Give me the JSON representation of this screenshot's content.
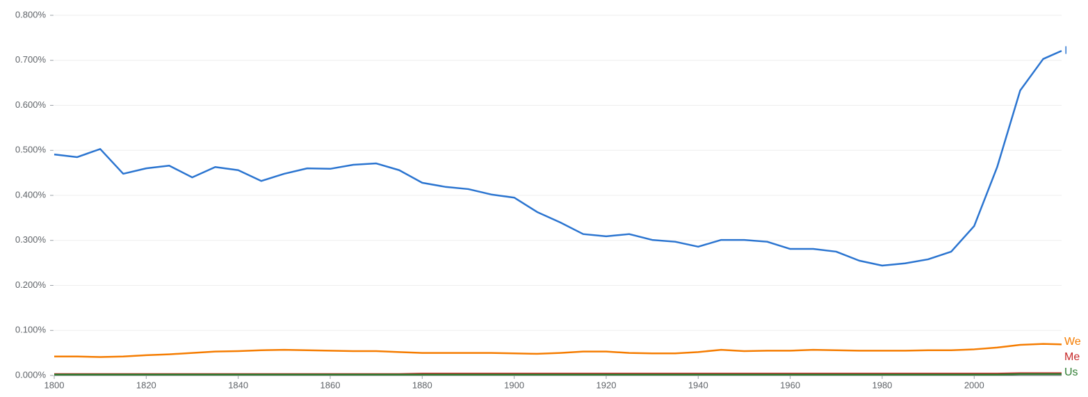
{
  "chart_data": {
    "type": "line",
    "x": [
      1800,
      1805,
      1810,
      1815,
      1820,
      1825,
      1830,
      1835,
      1840,
      1845,
      1850,
      1855,
      1860,
      1865,
      1870,
      1875,
      1880,
      1885,
      1890,
      1895,
      1900,
      1905,
      1910,
      1915,
      1920,
      1925,
      1930,
      1935,
      1940,
      1945,
      1950,
      1955,
      1960,
      1965,
      1970,
      1975,
      1980,
      1985,
      1990,
      1995,
      2000,
      2005,
      2010,
      2015,
      2019
    ],
    "series": [
      {
        "name": "I",
        "color": "#2a74d0",
        "values": [
          0.491,
          0.485,
          0.503,
          0.448,
          0.46,
          0.466,
          0.44,
          0.463,
          0.456,
          0.432,
          0.448,
          0.46,
          0.459,
          0.468,
          0.471,
          0.456,
          0.428,
          0.419,
          0.414,
          0.402,
          0.395,
          0.363,
          0.34,
          0.314,
          0.309,
          0.314,
          0.301,
          0.297,
          0.286,
          0.301,
          0.301,
          0.297,
          0.281,
          0.281,
          0.275,
          0.255,
          0.244,
          0.249,
          0.258,
          0.275,
          0.332,
          0.463,
          0.633,
          0.703,
          0.721
        ]
      },
      {
        "name": "We",
        "color": "#f57c00",
        "values": [
          0.042,
          0.042,
          0.041,
          0.042,
          0.045,
          0.047,
          0.05,
          0.053,
          0.054,
          0.056,
          0.057,
          0.056,
          0.055,
          0.054,
          0.054,
          0.052,
          0.05,
          0.05,
          0.05,
          0.05,
          0.049,
          0.048,
          0.05,
          0.053,
          0.053,
          0.05,
          0.049,
          0.049,
          0.052,
          0.057,
          0.054,
          0.055,
          0.055,
          0.057,
          0.056,
          0.055,
          0.055,
          0.055,
          0.056,
          0.056,
          0.058,
          0.062,
          0.068,
          0.07,
          0.069
        ]
      },
      {
        "name": "Me",
        "color": "#c62828",
        "values": [
          0.003,
          0.003,
          0.003,
          0.003,
          0.003,
          0.003,
          0.003,
          0.003,
          0.003,
          0.003,
          0.003,
          0.003,
          0.003,
          0.003,
          0.003,
          0.003,
          0.004,
          0.004,
          0.004,
          0.004,
          0.004,
          0.004,
          0.004,
          0.004,
          0.004,
          0.004,
          0.004,
          0.004,
          0.004,
          0.004,
          0.004,
          0.004,
          0.004,
          0.004,
          0.004,
          0.004,
          0.004,
          0.004,
          0.004,
          0.004,
          0.004,
          0.004,
          0.005,
          0.005,
          0.005
        ]
      },
      {
        "name": "Us",
        "color": "#2e7d32",
        "values": [
          0.002,
          0.002,
          0.002,
          0.002,
          0.002,
          0.002,
          0.002,
          0.002,
          0.002,
          0.002,
          0.002,
          0.002,
          0.002,
          0.002,
          0.002,
          0.002,
          0.002,
          0.002,
          0.002,
          0.002,
          0.002,
          0.002,
          0.002,
          0.002,
          0.002,
          0.002,
          0.002,
          0.002,
          0.002,
          0.002,
          0.002,
          0.002,
          0.002,
          0.002,
          0.002,
          0.002,
          0.002,
          0.002,
          0.002,
          0.002,
          0.002,
          0.002,
          0.003,
          0.003,
          0.003
        ]
      }
    ],
    "xlim": [
      1800,
      2019
    ],
    "xticks": [
      1800,
      1820,
      1840,
      1860,
      1880,
      1900,
      1920,
      1940,
      1960,
      1980,
      2000
    ],
    "ylim": [
      0,
      0.8
    ],
    "yticks": [
      {
        "value": 0,
        "label": "0.000%"
      },
      {
        "value": 0.1,
        "label": "0.100%"
      },
      {
        "value": 0.2,
        "label": "0.200%"
      },
      {
        "value": 0.3,
        "label": "0.300%"
      },
      {
        "value": 0.4,
        "label": "0.400%"
      },
      {
        "value": 0.5,
        "label": "0.500%"
      },
      {
        "value": 0.6,
        "label": "0.600%"
      },
      {
        "value": 0.7,
        "label": "0.700%"
      },
      {
        "value": 0.8,
        "label": "0.800%"
      }
    ],
    "grid": true
  }
}
